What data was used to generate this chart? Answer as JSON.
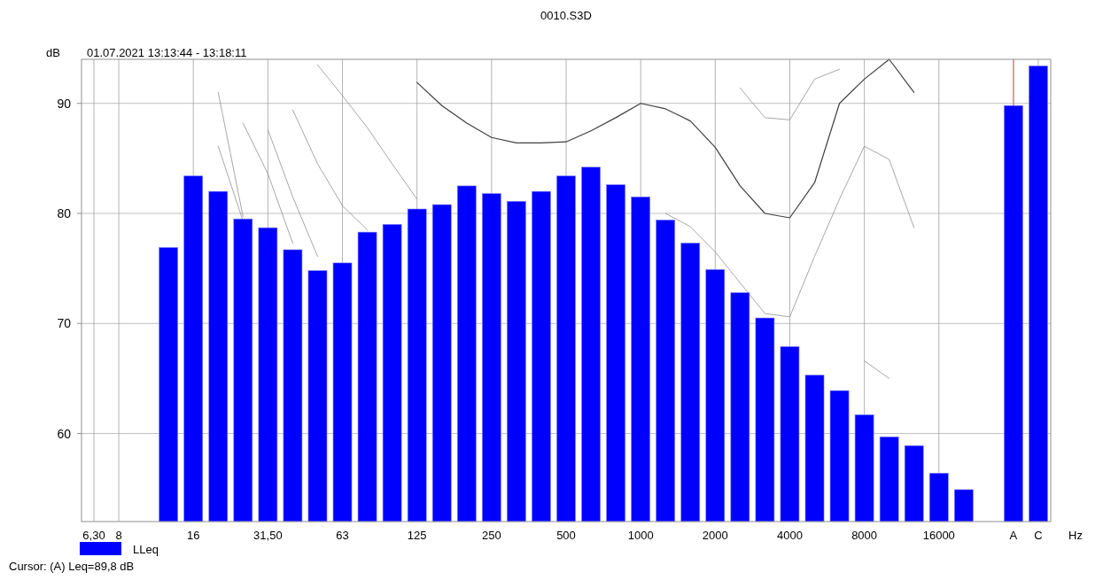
{
  "chart_data": {
    "type": "bar",
    "title": "0010.S3D",
    "subtitle": "01.07.2021 13:13:44 - 13:18:11",
    "ylabel": "dB",
    "xlabel": "Hz",
    "categories": [
      "6,30",
      "8",
      null,
      null,
      "16",
      null,
      null,
      "31,50",
      null,
      null,
      "63",
      null,
      null,
      "125",
      null,
      null,
      "250",
      null,
      null,
      "500",
      null,
      null,
      "1000",
      null,
      null,
      "2000",
      null,
      null,
      "4000",
      null,
      null,
      "8000",
      null,
      null,
      "16000",
      null,
      null,
      "A",
      "C"
    ],
    "ylim": [
      52,
      94
    ],
    "yticks": [
      60,
      70,
      80,
      90
    ],
    "grid": true,
    "legend": "bottom left",
    "marker": "none",
    "annotations": [
      "Cursor: (A)  Leq=89,8 dB"
    ],
    "ref_lines": [
      {
        "axis": "x",
        "value": "A",
        "color": "#e06060"
      }
    ],
    "series": [
      {
        "name": "LLeq",
        "color": "#0000ff",
        "values": [
          null,
          null,
          null,
          76.9,
          83.4,
          82.0,
          79.5,
          78.7,
          76.7,
          74.8,
          75.5,
          78.3,
          79.0,
          80.4,
          80.8,
          82.5,
          81.8,
          81.1,
          82.0,
          83.4,
          84.2,
          82.6,
          81.5,
          79.4,
          77.3,
          74.9,
          72.8,
          70.5,
          67.9,
          65.3,
          63.9,
          61.7,
          59.7,
          58.9,
          56.4,
          54.9,
          null,
          89.8,
          93.4
        ]
      },
      {
        "type": "line",
        "color": "#404040",
        "values": [
          null,
          null,
          null,
          null,
          null,
          null,
          null,
          null,
          null,
          null,
          null,
          null,
          null,
          91.9,
          89.8,
          88.2,
          86.9,
          86.4,
          86.4,
          86.5,
          87.5,
          88.7,
          90.0,
          89.5,
          88.4,
          86.0,
          82.5,
          80.0,
          79.6,
          82.8,
          90.0,
          92.2,
          94,
          91.0,
          null,
          null,
          null,
          null,
          null
        ]
      },
      {
        "type": "line",
        "color": "#909090",
        "values": [
          null,
          null,
          null,
          null,
          null,
          null,
          null,
          null,
          null,
          null,
          null,
          null,
          null,
          null,
          null,
          null,
          null,
          null,
          null,
          null,
          null,
          null,
          null,
          null,
          null,
          null,
          91.4,
          88.7,
          88.5,
          92.2,
          93.1,
          null,
          null,
          null,
          null,
          null,
          null,
          null,
          null
        ]
      },
      {
        "type": "line",
        "color": "#909090",
        "values": [
          null,
          null,
          null,
          null,
          null,
          null,
          null,
          null,
          null,
          93.5,
          90.7,
          87.8,
          84.5,
          81.3,
          null,
          null,
          null,
          null,
          null,
          null,
          null,
          null,
          null,
          80.0,
          78.8,
          76.5,
          73.7,
          70.9,
          70.6,
          76.1,
          81.3,
          86.1,
          84.9,
          78.7,
          null,
          null,
          null,
          null,
          null
        ]
      },
      {
        "type": "line",
        "color": "#909090",
        "values": [
          null,
          null,
          null,
          null,
          null,
          null,
          null,
          null,
          89.4,
          84.5,
          80.7,
          78.5,
          null,
          null,
          null,
          null,
          null,
          null,
          null,
          null,
          null,
          null,
          null,
          null,
          null,
          null,
          null,
          null,
          null,
          null,
          null,
          66.6,
          65.0,
          null,
          null,
          null,
          null,
          null,
          null
        ]
      },
      {
        "type": "line",
        "color": "#909090",
        "values": [
          null,
          null,
          null,
          null,
          null,
          null,
          null,
          87.6,
          81.5,
          76.1,
          null,
          null,
          null,
          null,
          null,
          null,
          null,
          null,
          null,
          null,
          null,
          null,
          null,
          null,
          null,
          null,
          null,
          null,
          null,
          null,
          null,
          null,
          null,
          null,
          null,
          null,
          null,
          null,
          null
        ]
      },
      {
        "type": "line",
        "color": "#909090",
        "values": [
          null,
          null,
          null,
          null,
          null,
          null,
          88.2,
          83.6,
          77.3,
          null,
          null,
          null,
          null,
          null,
          null,
          null,
          null,
          null,
          null,
          null,
          null,
          null,
          null,
          null,
          null,
          null,
          null,
          null,
          null,
          null,
          null,
          null,
          null,
          null,
          null,
          null,
          null,
          null,
          null
        ]
      },
      {
        "type": "line",
        "color": "#909090",
        "values": [
          null,
          null,
          null,
          null,
          null,
          91.0,
          79.7,
          null,
          null,
          null,
          null,
          null,
          null,
          null,
          null,
          null,
          null,
          null,
          null,
          null,
          null,
          null,
          null,
          null,
          null,
          null,
          null,
          null,
          null,
          null,
          null,
          null,
          null,
          null,
          null,
          null,
          null,
          null,
          null
        ]
      },
      {
        "type": "line",
        "color": "#909090",
        "values": [
          null,
          null,
          null,
          null,
          null,
          86.1,
          79.3,
          null,
          null,
          null,
          null,
          null,
          null,
          null,
          null,
          null,
          null,
          null,
          null,
          null,
          null,
          null,
          null,
          null,
          null,
          null,
          null,
          null,
          null,
          null,
          null,
          null,
          null,
          null,
          null,
          null,
          null,
          null,
          null
        ]
      }
    ]
  }
}
